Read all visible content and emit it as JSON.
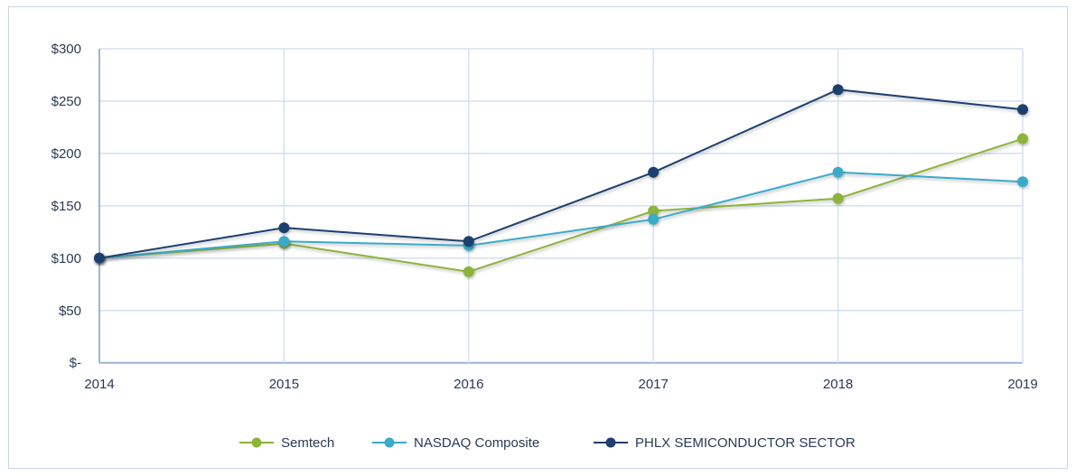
{
  "chart_data": {
    "type": "line",
    "title": "",
    "xlabel": "",
    "ylabel": "",
    "categories": [
      "2014",
      "2015",
      "2016",
      "2017",
      "2018",
      "2019"
    ],
    "ylim": [
      0,
      300
    ],
    "yticks": [
      0,
      50,
      100,
      150,
      200,
      250,
      300
    ],
    "ytick_labels": [
      "$-",
      "$50",
      "$100",
      "$150",
      "$200",
      "$250",
      "$300"
    ],
    "grid": true,
    "legend_position": "bottom",
    "series": [
      {
        "name": "Semtech",
        "color": "#8db33a",
        "values": [
          100,
          114,
          87,
          145,
          157,
          214
        ]
      },
      {
        "name": "NASDAQ Composite",
        "color": "#3aaac9",
        "values": [
          100,
          116,
          112,
          137,
          182,
          173
        ]
      },
      {
        "name": "PHLX SEMICONDUCTOR SECTOR",
        "color": "#1f3f6e",
        "values": [
          100,
          129,
          116,
          182,
          261,
          242
        ]
      }
    ]
  }
}
